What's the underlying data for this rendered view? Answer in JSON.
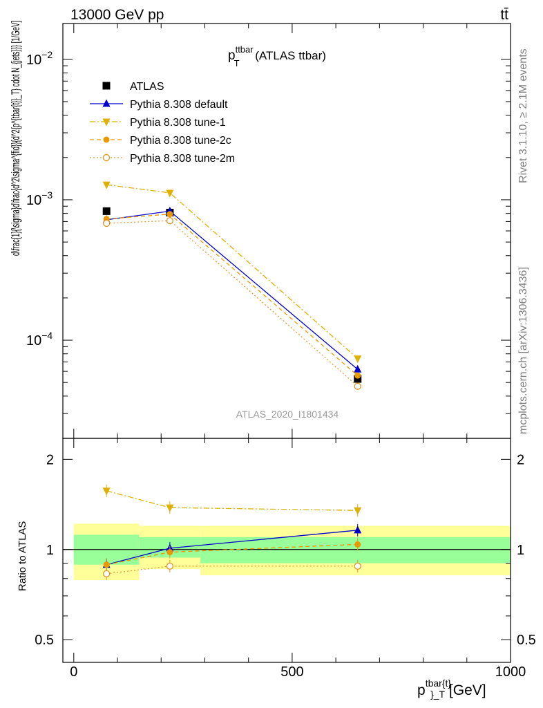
{
  "header": {
    "left": "13000 GeV pp",
    "right": "tt̄"
  },
  "side_labels": {
    "rivet": "Rivet 3.1.10, ≥ 2.1M events",
    "mcplots": "mcplots.cern.ch [arXiv:1306.3436]"
  },
  "watermark": "ATLAS_2020_I1801434",
  "plot_title": {
    "main": "p",
    "sup": "ttbar",
    "sub": "T",
    "rest": " (ATLAS ttbar)"
  },
  "main_ylabel": "d\\frac{1}{\\sigma}d\\frac{d^2\\sigma^{fid}}{d^2{p^{tbar{t}}_T} cdot N_{jets}}} [1/GeV]",
  "ratio_ylabel": "Ratio to ATLAS",
  "xlabel": {
    "main": "p",
    "sup": "tbar{t}",
    "sub": "}_T",
    "rest": " [GeV]"
  },
  "colors": {
    "atlas": "#000000",
    "default": "#0000cc",
    "tune1": "#e0b000",
    "tune2c": "#e89a00",
    "tune2m": "#e09a30",
    "band_inner": "#99ff99",
    "band_outer": "#ffff99"
  },
  "chart_data": [
    {
      "type": "line",
      "xlim": [
        -25,
        1000
      ],
      "ylim": [
        2e-05,
        0.018
      ],
      "yscale": "log",
      "y_ticks": [
        {
          "v": 0.0001,
          "label": "10",
          "exp": "−4"
        },
        {
          "v": 0.001,
          "label": "10",
          "exp": "−3"
        },
        {
          "v": 0.01,
          "label": "10",
          "exp": "−2"
        }
      ],
      "legend_position": "top-left",
      "series": [
        {
          "name": "ATLAS",
          "marker": "square",
          "x": [
            75,
            220,
            650
          ],
          "y": [
            0.00083,
            0.00081,
            5.3e-05
          ]
        },
        {
          "name": "Pythia 8.308 default",
          "marker": "triangle-up",
          "line": "solid",
          "x": [
            75,
            220,
            650
          ],
          "y": [
            0.00072,
            0.00083,
            6.2e-05
          ]
        },
        {
          "name": "Pythia 8.308 tune-1",
          "marker": "triangle-down",
          "line": "dashdot",
          "x": [
            75,
            220,
            650
          ],
          "y": [
            0.00128,
            0.00112,
            7.4e-05
          ]
        },
        {
          "name": "Pythia 8.308 tune-2c",
          "marker": "circle",
          "line": "dashed",
          "x": [
            75,
            220,
            650
          ],
          "y": [
            0.00073,
            0.00079,
            5.6e-05
          ]
        },
        {
          "name": "Pythia 8.308 tune-2m",
          "marker": "circle-open",
          "line": "dotted",
          "x": [
            75,
            220,
            650
          ],
          "y": [
            0.00068,
            0.00071,
            4.7e-05
          ]
        }
      ]
    },
    {
      "type": "line",
      "xlim": [
        -25,
        1000
      ],
      "ylim": [
        0.42,
        2.35
      ],
      "yscale": "log",
      "y_ticks": [
        {
          "v": 0.5,
          "label": "0.5"
        },
        {
          "v": 1,
          "label": "1"
        },
        {
          "v": 2,
          "label": "2"
        }
      ],
      "x_ticks": [
        {
          "v": 0,
          "label": "0"
        },
        {
          "v": 500,
          "label": "500"
        },
        {
          "v": 1000,
          "label": "1000"
        }
      ],
      "bins": [
        {
          "x0": 0,
          "x1": 150,
          "inner": [
            0.89,
            1.12
          ],
          "outer": [
            0.79,
            1.22
          ]
        },
        {
          "x0": 150,
          "x1": 290,
          "inner": [
            0.94,
            1.1
          ],
          "outer": [
            0.86,
            1.2
          ]
        },
        {
          "x0": 290,
          "x1": 1000,
          "inner": [
            0.9,
            1.1
          ],
          "outer": [
            0.82,
            1.2
          ]
        }
      ],
      "reference": 1,
      "series": [
        {
          "name": "Pythia 8.308 default",
          "x": [
            75,
            220,
            650
          ],
          "y": [
            0.89,
            1.01,
            1.16
          ]
        },
        {
          "name": "Pythia 8.308 tune-1",
          "x": [
            75,
            220,
            650
          ],
          "y": [
            1.57,
            1.38,
            1.35
          ]
        },
        {
          "name": "Pythia 8.308 tune-2c",
          "x": [
            75,
            220,
            650
          ],
          "y": [
            0.89,
            0.98,
            1.04
          ]
        },
        {
          "name": "Pythia 8.308 tune-2m",
          "x": [
            75,
            220,
            650
          ],
          "y": [
            0.83,
            0.88,
            0.88
          ]
        }
      ]
    }
  ]
}
